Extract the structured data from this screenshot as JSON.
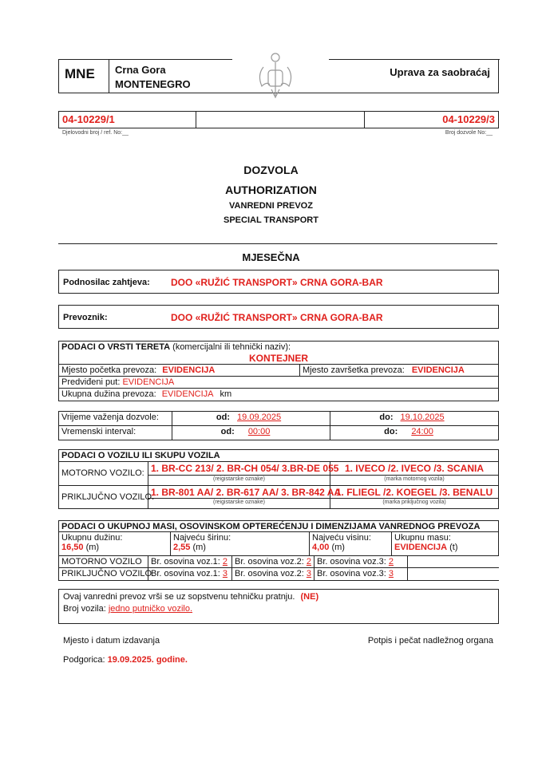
{
  "header": {
    "country_code": "MNE",
    "country_local": "Crna Gora",
    "country_en": "MONTENEGRO",
    "authority": "Uprava za saobraćaj",
    "emblem_icon": "montenegro-coat-of-arms"
  },
  "ref": {
    "case_number": "04-10229/1",
    "case_label": "Djelovodni broj / ref. No:__",
    "permit_number": "04-10229/3",
    "permit_label": "Broj dozvole No:__"
  },
  "titles": {
    "t1": "DOZVOLA",
    "t2": "AUTHORIZATION",
    "t3": "VANREDNI PREVOZ",
    "t4": "SPECIAL TRANSPORT",
    "period": "MJESEČNA"
  },
  "applicant": {
    "label": "Podnosilac zahtjeva:",
    "value": "DOO «RUŽIĆ TRANSPORT» CRNA GORA-BAR"
  },
  "carrier": {
    "label": "Prevoznik:",
    "value": "DOO «RUŽIĆ TRANSPORT» CRNA GORA-BAR"
  },
  "cargo": {
    "heading": "PODACI O VRSTI TERETA",
    "heading_note": "(komercijalni ili tehnički naziv):",
    "name": "KONTEJNER",
    "start_label": "Mjesto početka prevoza:",
    "start_value": "EVIDENCIJA",
    "end_label": "Mjesto završetka prevoza:",
    "end_value": "EVIDENCIJA",
    "route_label": "Predviđeni put:",
    "route_value": "EVIDENCIJA",
    "length_label": "Ukupna dužina prevoza:",
    "length_value": "EVIDENCIJA",
    "length_unit": "km"
  },
  "validity": {
    "valid_label": "Vrijeme važenja dozvole:",
    "from_label": "od:",
    "to_label": "do:",
    "valid_from": "19.09.2025",
    "valid_to": "19.10.2025",
    "interval_label": "Vremenski interval:",
    "time_from": "00:00",
    "time_to": "24:00"
  },
  "vehicle": {
    "heading": "PODACI O VOZILU ILI SKUPU  VOZILA",
    "motor_label": "MOTORNO VOZILO:",
    "motor_plates": "1. BR-CC 213/ 2. BR-CH 054/ 3.BR-DE 055",
    "motor_brands": "1. IVECO /2. IVECO /3. SCANIA",
    "plates_caption": "(reigistarske oznake)",
    "motor_brand_caption": "(marka motornog vozila)",
    "trailer_label": "PRIKLJUČNO VOZILO:",
    "trailer_plates": "1. BR-801 AA/ 2. BR-617 AA/ 3. BR-842 AA",
    "trailer_brands": "1. FLIEGL /2. KOEGEL /3. BENALU",
    "trailer_brand_caption": "(marka priključnog vozila)"
  },
  "mass": {
    "heading": "PODACI O UKUPNOJ MASI, OSOVINSKOM  OPTEREĆENJU I  DIMENZIJAMA VANREDNOG PREVOZA",
    "length_label": "Ukupnu dužinu:",
    "length_value": "16,50",
    "width_label": "Najveću širinu:",
    "width_value": "2,55",
    "height_label": "Najveću visinu:",
    "height_value": "4,00",
    "m_unit": "(m)",
    "mass_label": "Ukupnu masu:",
    "mass_value": "EVIDENCIJA",
    "t_unit": "(t)",
    "motor_label": "MOTORNO VOZILO",
    "trailer_label": "PRIKLJUČNO VOZILO",
    "axle1": "Br. osovina voz.1:",
    "axle2": "Br. osovina voz.2:",
    "axle3": "Br. osovina voz.3:",
    "motor_axles": [
      "2",
      "2",
      "2"
    ],
    "trailer_axles": [
      "3",
      "3",
      "3"
    ]
  },
  "escort": {
    "text": "Ovaj vanredni prevoz vrši se uz sopstvenu tehničku pratnju.",
    "value": "(NE)",
    "count_label": "Broj vozila:",
    "count_value": "jedno putničko vozilo."
  },
  "footer": {
    "place_label": "Mjesto i datum izdavanja",
    "place_value": "Podgorica:",
    "date_value": "19.09.2025. godine.",
    "signature_label": "Potpis i pečat nadležnog organa"
  }
}
